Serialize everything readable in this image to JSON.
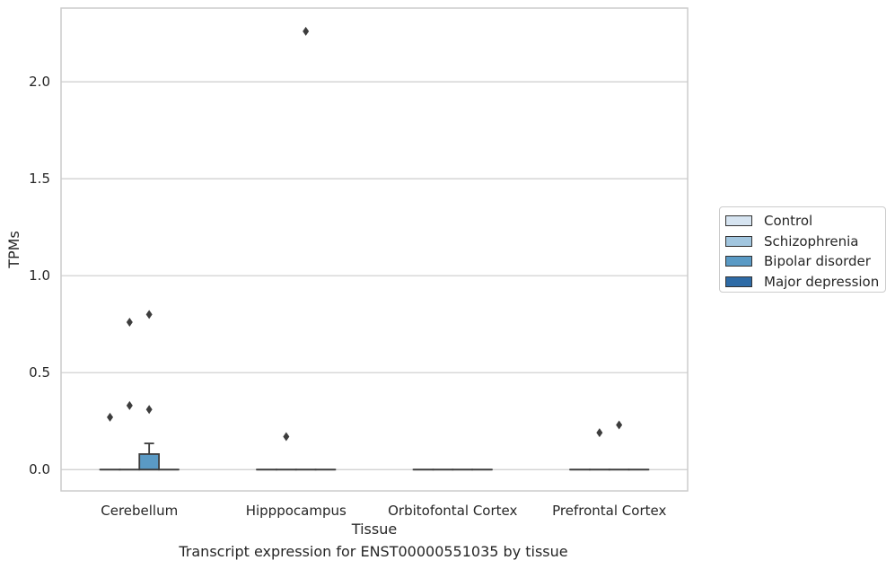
{
  "chart_data": {
    "type": "box",
    "xlabel": "Tissue",
    "ylabel": "TPMs",
    "caption": "Transcript expression for ENST00000551035 by tissue",
    "categories": [
      "Cerebellum",
      "Hipppocampus",
      "Orbitofontal Cortex",
      "Prefrontal Cortex"
    ],
    "ylim": [
      -0.11,
      2.38
    ],
    "yticks": [
      0.0,
      0.5,
      1.0,
      1.5,
      2.0
    ],
    "ytick_labels": [
      "0.0",
      "0.5",
      "1.0",
      "1.5",
      "2.0"
    ],
    "grid": true,
    "legend_position": "right",
    "series": [
      {
        "name": "Control",
        "color": "#d6e4f1",
        "boxes": [
          {
            "q1": 0,
            "median": 0,
            "q3": 0,
            "whisker_low": 0,
            "whisker_high": 0,
            "outliers": [
              0.27
            ]
          },
          {
            "q1": 0,
            "median": 0,
            "q3": 0,
            "whisker_low": 0,
            "whisker_high": 0,
            "outliers": []
          },
          {
            "q1": 0,
            "median": 0,
            "q3": 0,
            "whisker_low": 0,
            "whisker_high": 0,
            "outliers": []
          },
          {
            "q1": 0,
            "median": 0,
            "q3": 0,
            "whisker_low": 0,
            "whisker_high": 0,
            "outliers": []
          }
        ]
      },
      {
        "name": "Schizophrenia",
        "color": "#a2c6df",
        "boxes": [
          {
            "q1": 0,
            "median": 0,
            "q3": 0,
            "whisker_low": 0,
            "whisker_high": 0,
            "outliers": [
              0.33,
              0.76
            ]
          },
          {
            "q1": 0,
            "median": 0,
            "q3": 0,
            "whisker_low": 0,
            "whisker_high": 0,
            "outliers": [
              0.17
            ]
          },
          {
            "q1": 0,
            "median": 0,
            "q3": 0,
            "whisker_low": 0,
            "whisker_high": 0,
            "outliers": []
          },
          {
            "q1": 0,
            "median": 0,
            "q3": 0,
            "whisker_low": 0,
            "whisker_high": 0,
            "outliers": [
              0.19
            ]
          }
        ]
      },
      {
        "name": "Bipolar disorder",
        "color": "#5a9ac5",
        "boxes": [
          {
            "q1": 0,
            "median": 0,
            "q3": 0.08,
            "whisker_low": 0,
            "whisker_high": 0.135,
            "outliers": [
              0.31,
              0.8
            ]
          },
          {
            "q1": 0,
            "median": 0,
            "q3": 0,
            "whisker_low": 0,
            "whisker_high": 0,
            "outliers": [
              2.26
            ]
          },
          {
            "q1": 0,
            "median": 0,
            "q3": 0,
            "whisker_low": 0,
            "whisker_high": 0,
            "outliers": []
          },
          {
            "q1": 0,
            "median": 0,
            "q3": 0,
            "whisker_low": 0,
            "whisker_high": 0,
            "outliers": [
              0.23
            ]
          }
        ]
      },
      {
        "name": "Major depression",
        "color": "#2e6ba6",
        "boxes": [
          {
            "q1": 0,
            "median": 0,
            "q3": 0,
            "whisker_low": 0,
            "whisker_high": 0,
            "outliers": []
          },
          {
            "q1": 0,
            "median": 0,
            "q3": 0,
            "whisker_low": 0,
            "whisker_high": 0,
            "outliers": []
          },
          {
            "q1": 0,
            "median": 0,
            "q3": 0,
            "whisker_low": 0,
            "whisker_high": 0,
            "outliers": []
          },
          {
            "q1": 0,
            "median": 0,
            "q3": 0,
            "whisker_low": 0,
            "whisker_high": 0,
            "outliers": []
          }
        ]
      }
    ],
    "colors": {
      "axis_frame": "#cccccc",
      "gridline": "#cccccc",
      "box_edge": "#3d3d3d",
      "outlier": "#3d3d3d"
    }
  }
}
